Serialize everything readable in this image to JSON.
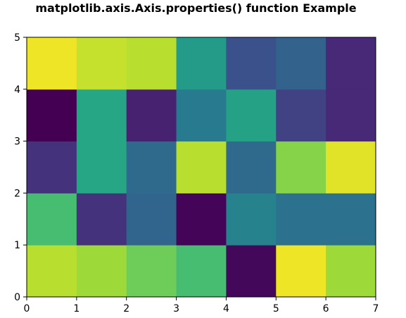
{
  "chart_data": {
    "type": "heatmap",
    "title": "matplotlib.axis.Axis.properties() function Example",
    "xlabel": "",
    "ylabel": "",
    "xlim": [
      0,
      7
    ],
    "ylim": [
      0,
      5
    ],
    "xticks": [
      0,
      1,
      2,
      3,
      4,
      5,
      6,
      7
    ],
    "yticks": [
      0,
      1,
      2,
      3,
      4,
      5
    ],
    "colormap": "viridis",
    "value_range": [
      0,
      1
    ],
    "grid": false,
    "rows_bottom_to_top": [
      [
        0.9,
        0.86,
        0.78,
        0.7,
        0.02,
        0.98,
        0.86
      ],
      [
        0.7,
        0.15,
        0.33,
        0.01,
        0.45,
        0.38,
        0.38
      ],
      [
        0.15,
        0.6,
        0.35,
        0.9,
        0.35,
        0.82,
        0.96
      ],
      [
        0.0,
        0.6,
        0.1,
        0.42,
        0.58,
        0.2,
        0.12
      ],
      [
        0.98,
        0.92,
        0.9,
        0.55,
        0.25,
        0.32,
        0.12
      ]
    ]
  }
}
